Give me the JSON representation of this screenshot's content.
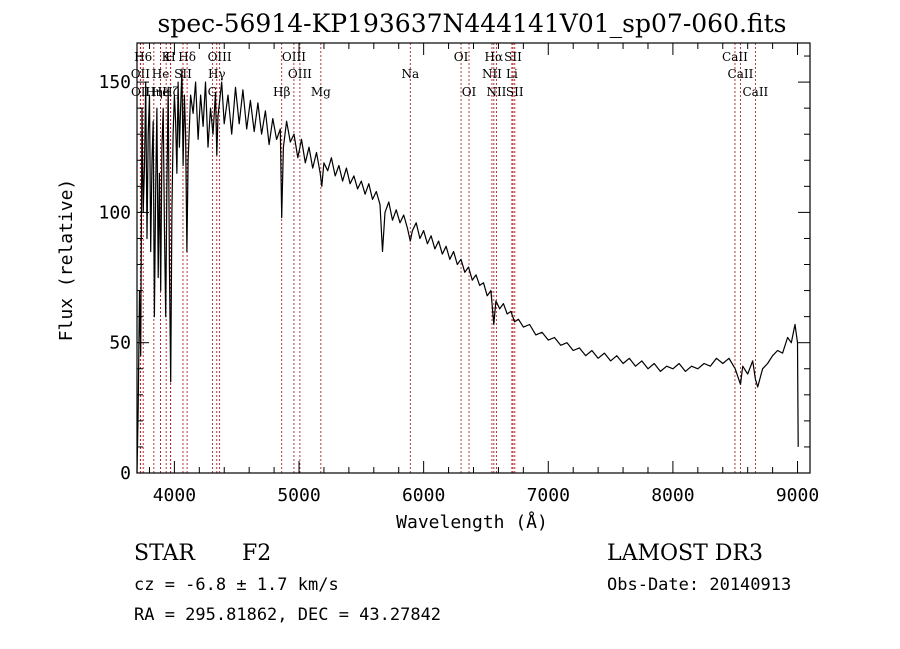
{
  "chart_data": {
    "type": "line",
    "title": "spec-56914-KP193637N444141V01_sp07-060.fits",
    "xlabel": "Wavelength (Å)",
    "ylabel": "Flux (relative)",
    "xlim": [
      3700,
      9100
    ],
    "ylim": [
      0,
      165
    ],
    "xticks": [
      4000,
      5000,
      6000,
      7000,
      8000,
      9000
    ],
    "xtick_labels": [
      "4000",
      "5000",
      "6000",
      "7000",
      "8000",
      "9000"
    ],
    "yticks": [
      0,
      50,
      100,
      150
    ],
    "ytick_labels": [
      "0",
      "50",
      "100",
      "150"
    ],
    "grid": false,
    "line_color": "#000000",
    "marker_color": "#b22222",
    "series": [
      {
        "name": "flux",
        "points": [
          [
            3700,
            0
          ],
          [
            3710,
            25
          ],
          [
            3720,
            70
          ],
          [
            3730,
            45
          ],
          [
            3740,
            140
          ],
          [
            3750,
            100
          ],
          [
            3760,
            118
          ],
          [
            3770,
            150
          ],
          [
            3780,
            90
          ],
          [
            3790,
            130
          ],
          [
            3800,
            145
          ],
          [
            3810,
            85
          ],
          [
            3820,
            120
          ],
          [
            3830,
            135
          ],
          [
            3840,
            60
          ],
          [
            3850,
            110
          ],
          [
            3860,
            140
          ],
          [
            3870,
            75
          ],
          [
            3880,
            115
          ],
          [
            3890,
            70
          ],
          [
            3900,
            125
          ],
          [
            3910,
            140
          ],
          [
            3920,
            95
          ],
          [
            3930,
            60
          ],
          [
            3940,
            110
          ],
          [
            3950,
            148
          ],
          [
            3960,
            80
          ],
          [
            3970,
            35
          ],
          [
            3980,
            100
          ],
          [
            3990,
            130
          ],
          [
            4000,
            145
          ],
          [
            4010,
            135
          ],
          [
            4020,
            115
          ],
          [
            4030,
            150
          ],
          [
            4040,
            125
          ],
          [
            4050,
            140
          ],
          [
            4060,
            155
          ],
          [
            4070,
            118
          ],
          [
            4080,
            145
          ],
          [
            4090,
            130
          ],
          [
            4100,
            85
          ],
          [
            4110,
            120
          ],
          [
            4130,
            145
          ],
          [
            4150,
            138
          ],
          [
            4170,
            150
          ],
          [
            4190,
            128
          ],
          [
            4210,
            145
          ],
          [
            4230,
            133
          ],
          [
            4250,
            150
          ],
          [
            4270,
            125
          ],
          [
            4290,
            140
          ],
          [
            4310,
            130
          ],
          [
            4330,
            146
          ],
          [
            4340,
            122
          ],
          [
            4350,
            137
          ],
          [
            4380,
            150
          ],
          [
            4400,
            134
          ],
          [
            4430,
            145
          ],
          [
            4460,
            130
          ],
          [
            4490,
            148
          ],
          [
            4520,
            134
          ],
          [
            4550,
            147
          ],
          [
            4580,
            132
          ],
          [
            4610,
            143
          ],
          [
            4640,
            131
          ],
          [
            4670,
            142
          ],
          [
            4700,
            130
          ],
          [
            4730,
            139
          ],
          [
            4760,
            126
          ],
          [
            4790,
            136
          ],
          [
            4820,
            128
          ],
          [
            4850,
            132
          ],
          [
            4861,
            98
          ],
          [
            4875,
            125
          ],
          [
            4900,
            135
          ],
          [
            4930,
            127
          ],
          [
            4960,
            130
          ],
          [
            4990,
            121
          ],
          [
            5020,
            128
          ],
          [
            5050,
            119
          ],
          [
            5080,
            125
          ],
          [
            5110,
            117
          ],
          [
            5140,
            123
          ],
          [
            5170,
            115
          ],
          [
            5183,
            110
          ],
          [
            5200,
            119
          ],
          [
            5230,
            116
          ],
          [
            5260,
            121
          ],
          [
            5290,
            114
          ],
          [
            5320,
            118
          ],
          [
            5350,
            112
          ],
          [
            5380,
            117
          ],
          [
            5410,
            111
          ],
          [
            5440,
            114
          ],
          [
            5470,
            109
          ],
          [
            5500,
            112
          ],
          [
            5530,
            107
          ],
          [
            5560,
            111
          ],
          [
            5590,
            105
          ],
          [
            5620,
            108
          ],
          [
            5650,
            103
          ],
          [
            5670,
            85
          ],
          [
            5690,
            100
          ],
          [
            5720,
            104
          ],
          [
            5750,
            97
          ],
          [
            5780,
            101
          ],
          [
            5810,
            96
          ],
          [
            5840,
            99
          ],
          [
            5870,
            94
          ],
          [
            5893,
            89
          ],
          [
            5910,
            93
          ],
          [
            5940,
            96
          ],
          [
            5970,
            90
          ],
          [
            6000,
            93
          ],
          [
            6030,
            88
          ],
          [
            6060,
            91
          ],
          [
            6090,
            86
          ],
          [
            6120,
            89
          ],
          [
            6150,
            84
          ],
          [
            6180,
            87
          ],
          [
            6210,
            82
          ],
          [
            6240,
            85
          ],
          [
            6270,
            80
          ],
          [
            6300,
            82
          ],
          [
            6330,
            77
          ],
          [
            6360,
            79
          ],
          [
            6390,
            74
          ],
          [
            6420,
            76
          ],
          [
            6450,
            72
          ],
          [
            6480,
            73
          ],
          [
            6510,
            68
          ],
          [
            6540,
            70
          ],
          [
            6563,
            57
          ],
          [
            6580,
            66
          ],
          [
            6610,
            63
          ],
          [
            6640,
            65
          ],
          [
            6670,
            61
          ],
          [
            6700,
            62
          ],
          [
            6730,
            58
          ],
          [
            6760,
            59
          ],
          [
            6800,
            56
          ],
          [
            6850,
            57
          ],
          [
            6900,
            53
          ],
          [
            6950,
            54
          ],
          [
            7000,
            51
          ],
          [
            7050,
            52
          ],
          [
            7100,
            49
          ],
          [
            7150,
            50
          ],
          [
            7200,
            47
          ],
          [
            7250,
            48
          ],
          [
            7300,
            45
          ],
          [
            7350,
            47
          ],
          [
            7400,
            44
          ],
          [
            7450,
            46
          ],
          [
            7500,
            43
          ],
          [
            7550,
            45
          ],
          [
            7600,
            42
          ],
          [
            7650,
            44
          ],
          [
            7700,
            41
          ],
          [
            7750,
            43
          ],
          [
            7800,
            40
          ],
          [
            7850,
            42
          ],
          [
            7900,
            39
          ],
          [
            7950,
            41
          ],
          [
            8000,
            40
          ],
          [
            8050,
            42
          ],
          [
            8100,
            39
          ],
          [
            8150,
            41
          ],
          [
            8200,
            40
          ],
          [
            8250,
            42
          ],
          [
            8300,
            41
          ],
          [
            8350,
            44
          ],
          [
            8400,
            42
          ],
          [
            8450,
            44
          ],
          [
            8500,
            40
          ],
          [
            8542,
            34
          ],
          [
            8560,
            41
          ],
          [
            8600,
            38
          ],
          [
            8640,
            43
          ],
          [
            8662,
            36
          ],
          [
            8680,
            33
          ],
          [
            8720,
            40
          ],
          [
            8760,
            42
          ],
          [
            8800,
            45
          ],
          [
            8840,
            47
          ],
          [
            8880,
            46
          ],
          [
            8920,
            52
          ],
          [
            8950,
            50
          ],
          [
            8980,
            57
          ],
          [
            9000,
            50
          ],
          [
            9005,
            10
          ]
        ]
      }
    ],
    "lines": [
      {
        "label": "H6",
        "x": 3750,
        "row": 0
      },
      {
        "label": "OII",
        "x": 3727,
        "row": 1
      },
      {
        "label": "OII",
        "x": 3729,
        "row": 2
      },
      {
        "label": "He",
        "x": 3889,
        "row": 2
      },
      {
        "label": "He",
        "x": 3889,
        "row": 1
      },
      {
        "label": "K",
        "x": 3934,
        "row": 0
      },
      {
        "label": "H",
        "x": 3969,
        "row": 0
      },
      {
        "label": "Hη",
        "x": 3835,
        "row": 2
      },
      {
        "label": "Hζ",
        "x": 3970,
        "row": 2
      },
      {
        "label": "SII",
        "x": 4069,
        "row": 1
      },
      {
        "label": "Hδ",
        "x": 4102,
        "row": 0
      },
      {
        "label": "OIII",
        "x": 4363,
        "row": 0
      },
      {
        "label": "Hγ",
        "x": 4340,
        "row": 1
      },
      {
        "label": "G",
        "x": 4305,
        "row": 2
      },
      {
        "label": "Hβ",
        "x": 4861,
        "row": 2
      },
      {
        "label": "OIII",
        "x": 4959,
        "row": 0
      },
      {
        "label": "OIII",
        "x": 5007,
        "row": 1
      },
      {
        "label": "Mg",
        "x": 5175,
        "row": 2
      },
      {
        "label": "Na",
        "x": 5893,
        "row": 1
      },
      {
        "label": "OI",
        "x": 6300,
        "row": 0
      },
      {
        "label": "OI",
        "x": 6364,
        "row": 2
      },
      {
        "label": "Hα",
        "x": 6563,
        "row": 0
      },
      {
        "label": "NII",
        "x": 6548,
        "row": 1
      },
      {
        "label": "NII",
        "x": 6584,
        "row": 2
      },
      {
        "label": "SII",
        "x": 6717,
        "row": 0
      },
      {
        "label": "Li",
        "x": 6708,
        "row": 1
      },
      {
        "label": "SII",
        "x": 6731,
        "row": 2
      },
      {
        "label": "CaII",
        "x": 8498,
        "row": 0
      },
      {
        "label": "CaII",
        "x": 8542,
        "row": 1
      },
      {
        "label": "CaII",
        "x": 8662,
        "row": 2
      }
    ]
  },
  "info": {
    "class_label": "STAR",
    "subclass": "F2",
    "survey": "LAMOST DR3",
    "cz": "cz = -6.8 ± 1.7 km/s",
    "obs_date": "Obs-Date: 20140913",
    "coords": "RA = 295.81862, DEC =  43.27842"
  }
}
